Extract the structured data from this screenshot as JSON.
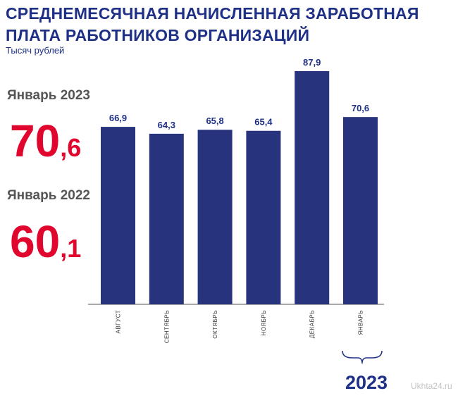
{
  "title": "СРЕДНЕМЕСЯЧНАЯ НАЧИСЛЕННАЯ ЗАРАБОТНАЯ ПЛАТА РАБОТНИКОВ ОРГАНИЗАЦИЙ",
  "unit": "Тысяч рублей",
  "highlights": [
    {
      "label": "Январь 2023",
      "int": "70",
      "dec": ",6"
    },
    {
      "label": "Январь 2022",
      "int": "60",
      "dec": ",1"
    }
  ],
  "colors": {
    "bar": "#28337e",
    "title": "#1f3087",
    "highlight": "#e0062d",
    "label": "#555555"
  },
  "year_label": "2023",
  "watermark": "Ukhta24.ru",
  "chart_data": {
    "type": "bar",
    "title": "СРЕДНЕМЕСЯЧНАЯ НАЧИСЛЕННАЯ ЗАРАБОТНАЯ ПЛАТА РАБОТНИКОВ ОРГАНИЗАЦИЙ",
    "ylabel": "Тысяч рублей",
    "xlabel": "",
    "categories": [
      "АВГУСТ",
      "СЕНТЯБРЬ",
      "ОКТЯБРЬ",
      "НОЯБРЬ",
      "ДЕКАБРЬ",
      "ЯНВАРЬ"
    ],
    "values": [
      66.9,
      64.3,
      65.8,
      65.4,
      87.9,
      70.6
    ],
    "value_labels": [
      "66,9",
      "64,3",
      "65,8",
      "65,4",
      "87,9",
      "70,6"
    ],
    "ylim": [
      0,
      87.9
    ],
    "grid": false
  }
}
